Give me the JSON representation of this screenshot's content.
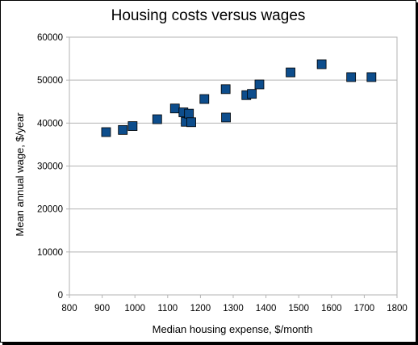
{
  "chart_data": {
    "type": "scatter",
    "title": "Housing costs versus wages",
    "xlabel": "Median housing expense, $/month",
    "ylabel": "Mean annual wage, $/year",
    "xlim": [
      800,
      1800
    ],
    "ylim": [
      0,
      60000
    ],
    "xticks": [
      800,
      900,
      1000,
      1100,
      1200,
      1300,
      1400,
      1500,
      1600,
      1700,
      1800
    ],
    "yticks": [
      0,
      10000,
      20000,
      30000,
      40000,
      50000,
      60000
    ],
    "grid": "horizontal",
    "legend": "none",
    "marker": "square",
    "marker_color": "#0d4d8c",
    "points": [
      {
        "x": 912,
        "y": 37900
      },
      {
        "x": 963,
        "y": 38400
      },
      {
        "x": 993,
        "y": 39300
      },
      {
        "x": 1068,
        "y": 40900
      },
      {
        "x": 1122,
        "y": 43400
      },
      {
        "x": 1148,
        "y": 42500
      },
      {
        "x": 1155,
        "y": 40300
      },
      {
        "x": 1165,
        "y": 42200
      },
      {
        "x": 1172,
        "y": 40200
      },
      {
        "x": 1212,
        "y": 45600
      },
      {
        "x": 1277,
        "y": 47900
      },
      {
        "x": 1278,
        "y": 41300
      },
      {
        "x": 1340,
        "y": 46500
      },
      {
        "x": 1357,
        "y": 46800
      },
      {
        "x": 1380,
        "y": 49000
      },
      {
        "x": 1475,
        "y": 51800
      },
      {
        "x": 1570,
        "y": 53700
      },
      {
        "x": 1660,
        "y": 50700
      },
      {
        "x": 1722,
        "y": 50700
      }
    ]
  }
}
